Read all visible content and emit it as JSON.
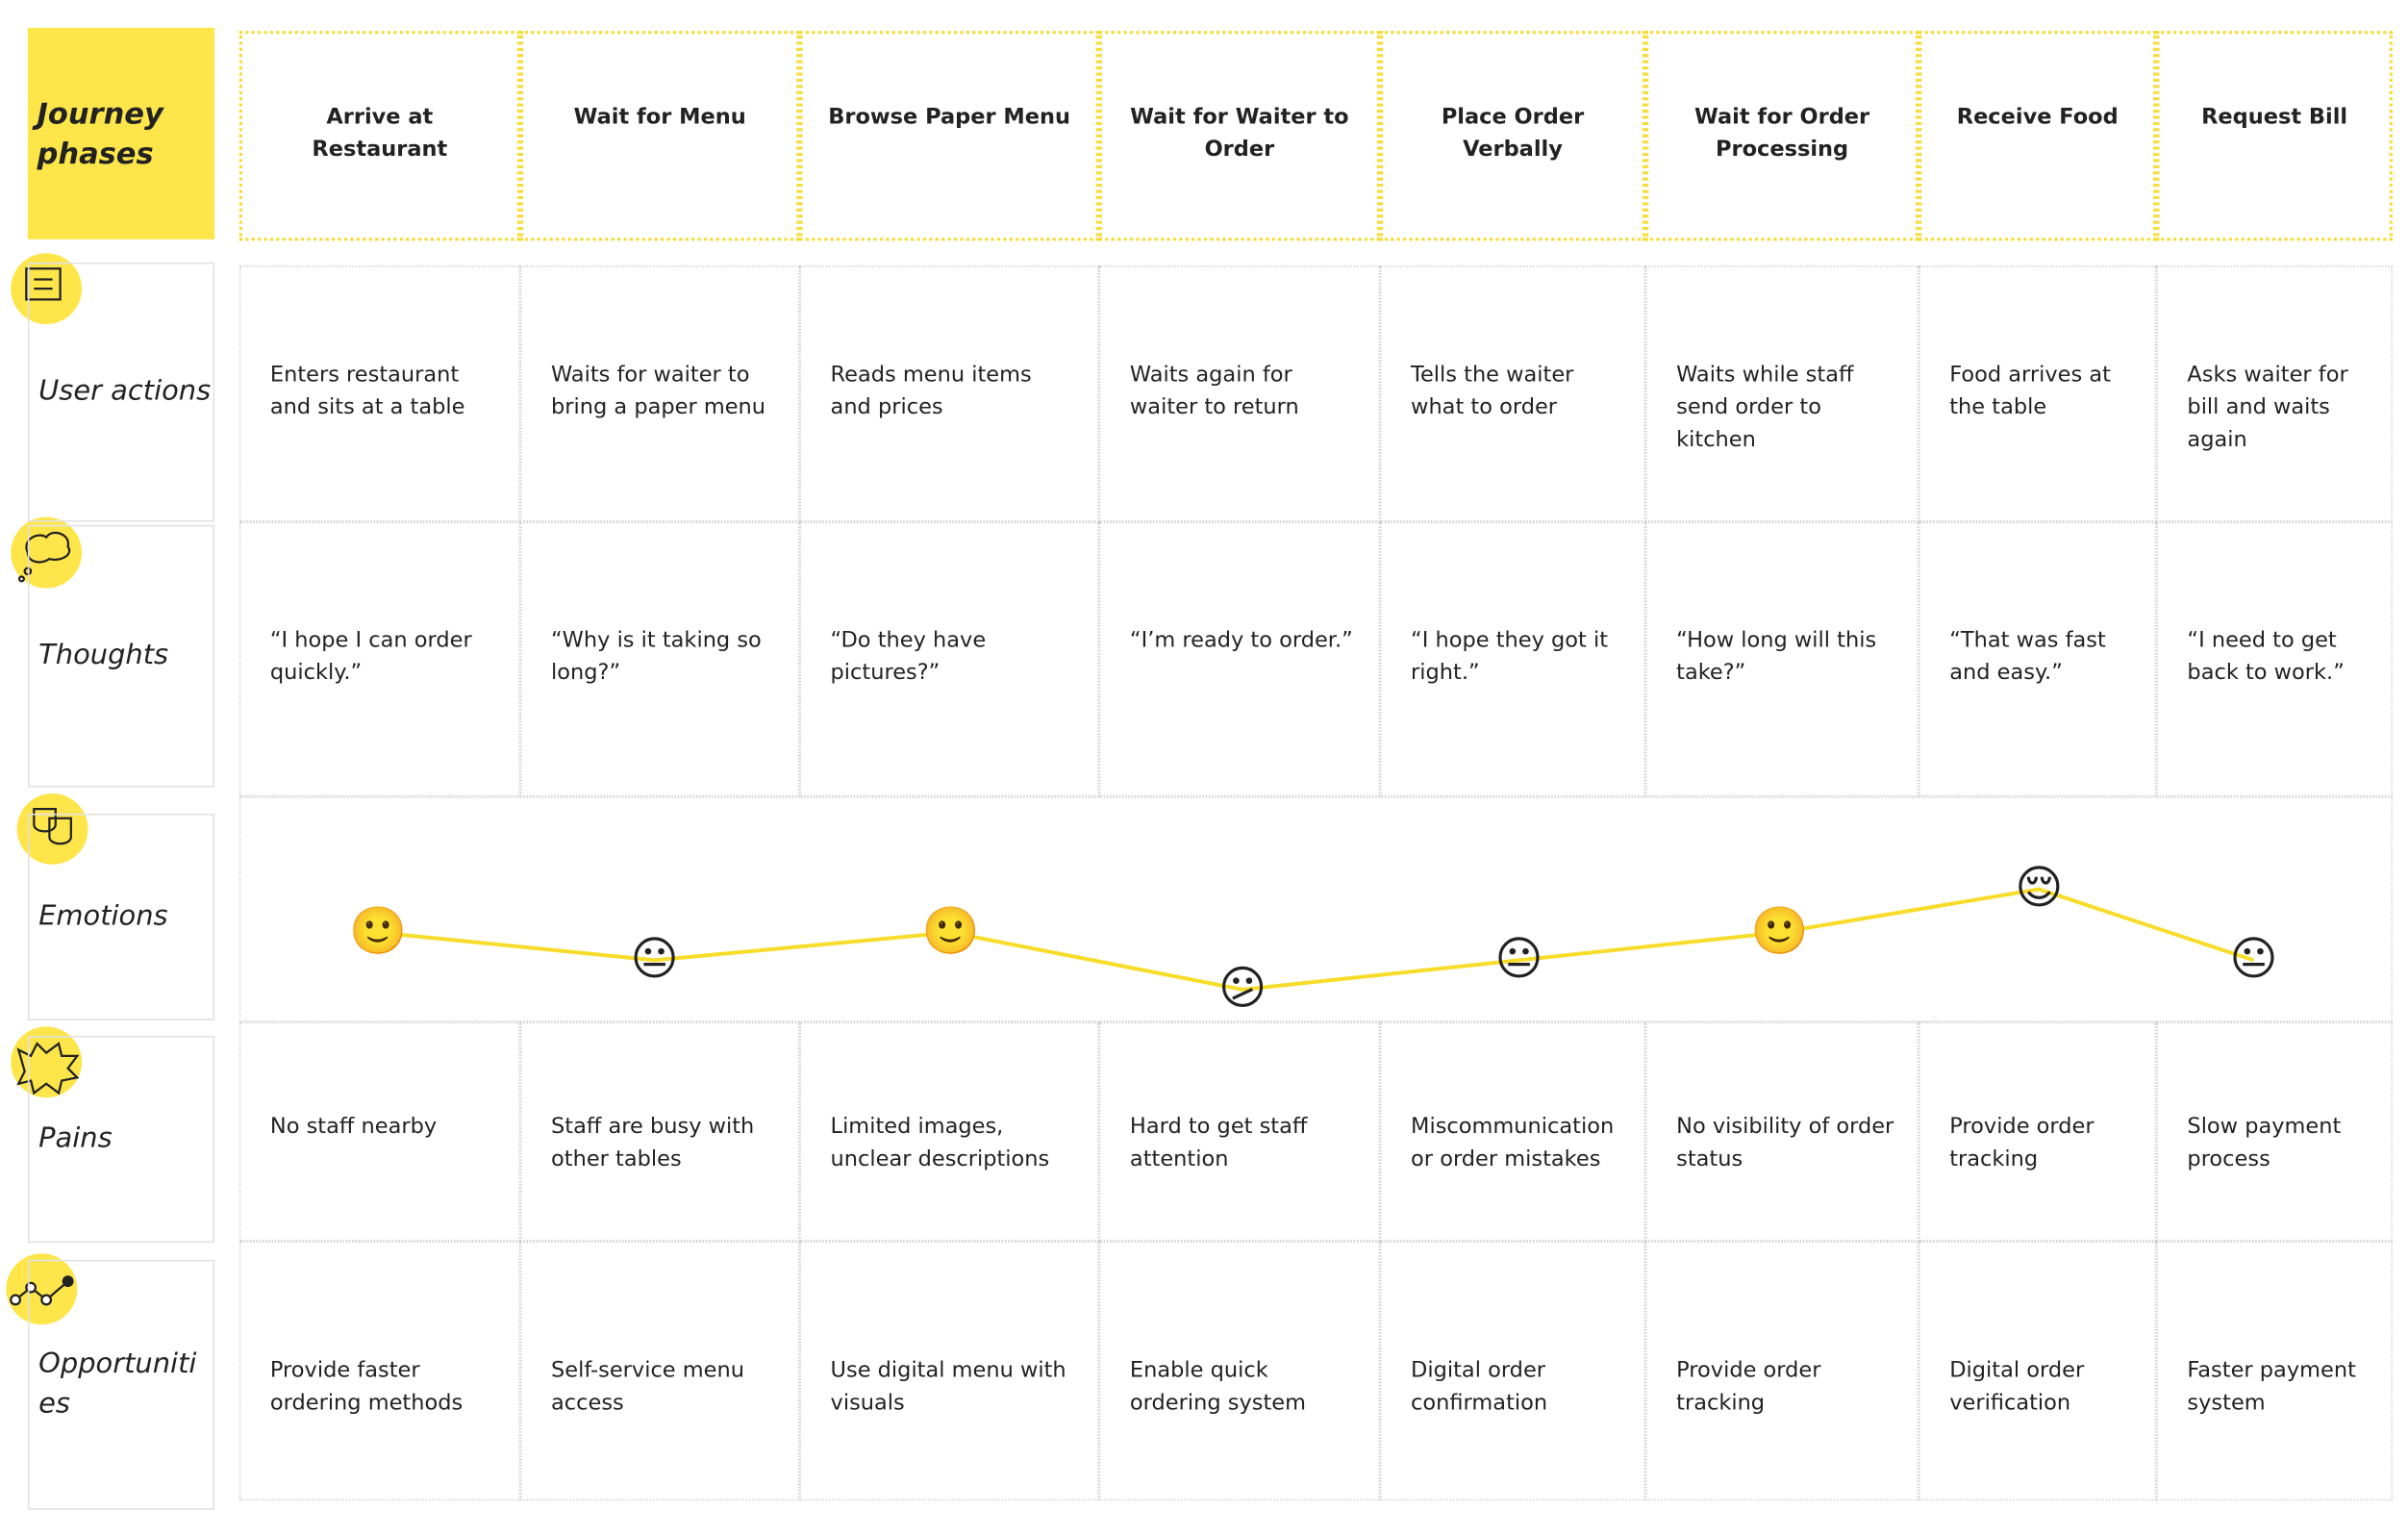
{
  "title": "Journey phases",
  "phases": [
    "Arrive at Restaurant",
    "Wait for Menu",
    "Browse Paper Menu",
    "Wait for Waiter to Order",
    "Place Order Verbally",
    "Wait for Order Processing",
    "Receive Food",
    "Request Bill"
  ],
  "rows": [
    {
      "label": "User actions",
      "cells": [
        "Enters restaurant and sits at a table",
        "Waits for waiter to bring a paper menu",
        "Reads menu items and prices",
        "Waits again for waiter to return",
        "Tells the waiter what to order",
        "Waits while staff send order to kitchen",
        "Food arrives at the table",
        "Asks waiter for bill and waits again"
      ]
    },
    {
      "label": "Thoughts",
      "cells": [
        "“I hope I can order quickly.”",
        "“Why is it taking so long?”",
        "“Do they have pictures?”",
        "“I’m ready to order.”",
        "“I hope they got it right.”",
        "“How long will this take?”",
        "“That was fast and easy.”",
        "“I need to get back to work.”"
      ]
    },
    {
      "label": "Emotions",
      "cells": [
        "🙂",
        "😐",
        "🙂",
        "😕",
        "😐",
        "🙂",
        "😌",
        "😐"
      ]
    },
    {
      "label": "Pains",
      "cells": [
        "No staff nearby",
        "Staff are busy with other tables",
        "Limited images, unclear descriptions",
        "Hard to get staff attention",
        "Miscommunication or order mistakes",
        "No visibility of order status",
        "Provide order tracking",
        "Slow payment process"
      ]
    },
    {
      "label": "Opportunities",
      "cells": [
        "Provide faster ordering methods",
        "Self-service menu access",
        "Use digital menu with visuals",
        "Enable quick ordering system",
        "Digital order confirmation",
        "Provide order tracking",
        "Digital order verification",
        "Faster payment system"
      ]
    }
  ]
}
